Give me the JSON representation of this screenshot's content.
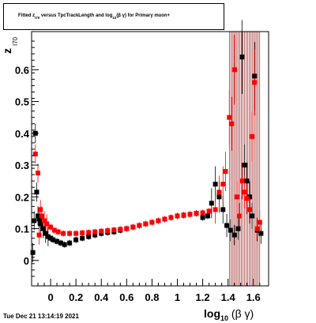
{
  "title": {
    "part1": "Fitted  z",
    "part1_sub": "I70",
    "part2": "  versus  TpcTrackLength and log",
    "part2_sub": "10",
    "part3": "(β γ) for Primary muon+"
  },
  "timestamp": "Tue Dec 21 13:14:19 2021",
  "chart_data": {
    "type": "scatter",
    "title": "Fitted z_I70 versus TpcTrackLength and log10(β γ) for Primary muon+",
    "xlabel": "log10 (β γ)",
    "ylabel": "z I70",
    "xlim": [
      -0.15,
      1.72
    ],
    "ylim": [
      -0.08,
      0.72
    ],
    "x_ticks": [
      0,
      0.2,
      0.4,
      0.6,
      0.8,
      1,
      1.2,
      1.4,
      1.6
    ],
    "x_tick_labels": [
      "0",
      "0.2",
      "0.4",
      "0.6",
      "0.8",
      "1",
      "1.2",
      "1.4",
      "1.6"
    ],
    "y_ticks": [
      0,
      0.1,
      0.2,
      0.3,
      0.4,
      0.5,
      0.6
    ],
    "y_tick_labels": [
      "0",
      "0.1",
      "0.2",
      "0.3",
      "0.4",
      "0.5",
      "0.6"
    ],
    "grid": false,
    "colors": {
      "series_black": "#000000",
      "series_red": "#ff0000",
      "error_band": "#8b0000"
    },
    "series": [
      {
        "color": "#000000",
        "points": [
          [
            -0.14,
            0.025
          ],
          [
            -0.13,
            0.125
          ],
          [
            -0.12,
            0.4
          ],
          [
            -0.11,
            0.215
          ],
          [
            -0.1,
            0.14
          ],
          [
            -0.09,
            0.13
          ],
          [
            -0.08,
            0.115
          ],
          [
            -0.06,
            0.1
          ],
          [
            -0.04,
            0.085
          ],
          [
            -0.02,
            0.075
          ],
          [
            0.0,
            0.07
          ],
          [
            0.02,
            0.065
          ],
          [
            0.05,
            0.06
          ],
          [
            0.08,
            0.055
          ],
          [
            0.11,
            0.05
          ],
          [
            0.15,
            0.055
          ],
          [
            0.2,
            0.065
          ],
          [
            0.25,
            0.07
          ],
          [
            0.3,
            0.075
          ],
          [
            0.35,
            0.08
          ],
          [
            0.4,
            0.085
          ],
          [
            0.45,
            0.088
          ],
          [
            0.5,
            0.09
          ],
          [
            0.55,
            0.095
          ],
          [
            0.6,
            0.1
          ],
          [
            0.65,
            0.105
          ],
          [
            0.7,
            0.11
          ],
          [
            0.75,
            0.115
          ],
          [
            0.8,
            0.12
          ],
          [
            0.85,
            0.125
          ],
          [
            0.9,
            0.13
          ],
          [
            0.95,
            0.135
          ],
          [
            1.0,
            0.14
          ],
          [
            1.05,
            0.142
          ],
          [
            1.1,
            0.145
          ],
          [
            1.15,
            0.148
          ],
          [
            1.2,
            0.135
          ],
          [
            1.24,
            0.14
          ],
          [
            1.27,
            0.18
          ],
          [
            1.3,
            0.24
          ],
          [
            1.33,
            0.2
          ],
          [
            1.36,
            0.16
          ],
          [
            1.39,
            0.11
          ],
          [
            1.42,
            0.095
          ],
          [
            1.45,
            0.08
          ],
          [
            1.48,
            0.1
          ],
          [
            1.51,
            0.64
          ],
          [
            1.53,
            0.3
          ],
          [
            1.55,
            0.25
          ],
          [
            1.57,
            0.2
          ],
          [
            1.59,
            0.14
          ],
          [
            1.61,
            0.58
          ],
          [
            1.63,
            0.095
          ],
          [
            1.66,
            0.085
          ]
        ]
      },
      {
        "color": "#ff0000",
        "points": [
          [
            -0.12,
            0.335
          ],
          [
            -0.1,
            0.275
          ],
          [
            -0.09,
            0.08
          ],
          [
            -0.08,
            0.16
          ],
          [
            -0.07,
            0.14
          ],
          [
            -0.05,
            0.125
          ],
          [
            -0.03,
            0.115
          ],
          [
            0.0,
            0.105
          ],
          [
            0.03,
            0.095
          ],
          [
            0.06,
            0.09
          ],
          [
            0.1,
            0.085
          ],
          [
            0.15,
            0.085
          ],
          [
            0.2,
            0.085
          ],
          [
            0.25,
            0.087
          ],
          [
            0.3,
            0.088
          ],
          [
            0.35,
            0.09
          ],
          [
            0.4,
            0.092
          ],
          [
            0.45,
            0.094
          ],
          [
            0.5,
            0.096
          ],
          [
            0.55,
            0.098
          ],
          [
            0.6,
            0.1
          ],
          [
            0.65,
            0.105
          ],
          [
            0.7,
            0.11
          ],
          [
            0.75,
            0.115
          ],
          [
            0.8,
            0.12
          ],
          [
            0.85,
            0.125
          ],
          [
            0.9,
            0.13
          ],
          [
            0.95,
            0.135
          ],
          [
            1.0,
            0.14
          ],
          [
            1.05,
            0.143
          ],
          [
            1.1,
            0.145
          ],
          [
            1.15,
            0.148
          ],
          [
            1.2,
            0.15
          ],
          [
            1.25,
            0.155
          ],
          [
            1.3,
            0.16
          ],
          [
            1.33,
            0.215
          ],
          [
            1.36,
            0.24
          ],
          [
            1.38,
            0.28
          ],
          [
            1.41,
            0.45
          ],
          [
            1.43,
            0.43
          ],
          [
            1.45,
            0.6
          ],
          [
            1.47,
            0.2
          ],
          [
            1.49,
            0.14
          ],
          [
            1.51,
            0.25
          ],
          [
            1.53,
            0.215
          ],
          [
            1.55,
            0.195
          ],
          [
            1.57,
            0.16
          ],
          [
            1.59,
            0.39
          ],
          [
            1.61,
            0.56
          ],
          [
            1.63,
            0.1
          ],
          [
            1.65,
            0.12
          ]
        ]
      }
    ]
  }
}
